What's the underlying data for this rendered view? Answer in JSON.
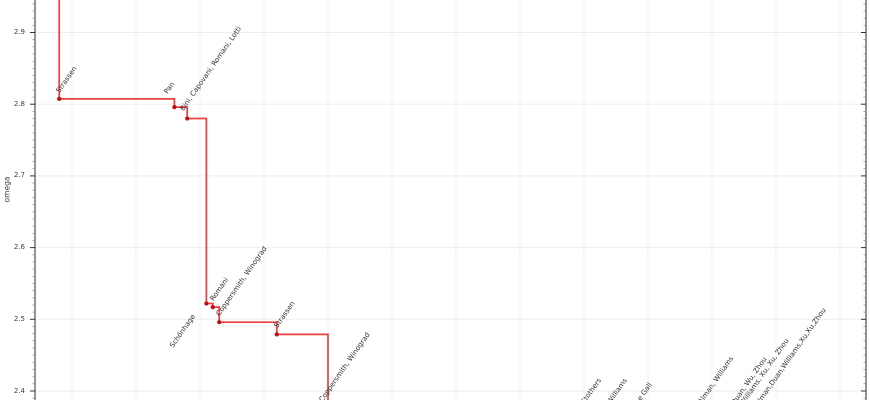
{
  "chart_data": {
    "type": "line",
    "step_style": "post",
    "title": "",
    "xlabel": "",
    "ylabel": "omega",
    "legend": "none",
    "grid": "on",
    "line_color": "#e8403e",
    "marker_color": "#c00d0d",
    "grid_color": "#ededed",
    "vgrid_color": "#f1f1f1",
    "axis_color": "#2b2b2b",
    "start_value": {
      "year": 1969,
      "omega_from": 3.0
    },
    "y_axis": {
      "tick_labels": [
        "2.9",
        "2.8",
        "2.7",
        "2.6",
        "2.5",
        "2.4"
      ],
      "tick_values": [
        2.9,
        2.8,
        2.7,
        2.6,
        2.5,
        2.4
      ],
      "minor_step": 0.01,
      "visible_range": [
        2.387,
        2.945
      ]
    },
    "x_axis": {
      "gridline_years": [
        1970,
        1975,
        1980,
        1985,
        1990,
        1995,
        2000,
        2005,
        2010,
        2015,
        2020,
        2025,
        2030
      ],
      "visible_range": [
        1967.1,
        2032.2
      ],
      "tick_labels_visible": false
    },
    "points": [
      {
        "year": 1969,
        "omega": 2.8074,
        "label": "Strassen"
      },
      {
        "year": 1978,
        "omega": 2.796,
        "label": "Pan"
      },
      {
        "year": 1979,
        "omega": 2.78,
        "label": "Bini, Capovani, Romani, Lotti"
      },
      {
        "year": 1980.5,
        "omega": 2.522,
        "label": "Schönhage"
      },
      {
        "year": 1981,
        "omega": 2.517,
        "label": "Romani"
      },
      {
        "year": 1981.5,
        "omega": 2.496,
        "label": "Coppersmith, Winograd"
      },
      {
        "year": 1986,
        "omega": 2.479,
        "label": "Strassen"
      },
      {
        "year": 1990,
        "omega": 2.376,
        "label": "Coppersmith, Winograd"
      },
      {
        "year": 2010,
        "omega": 2.374,
        "label": "Stothers"
      },
      {
        "year": 2012,
        "omega": 2.3729,
        "label": "Williams"
      },
      {
        "year": 2014,
        "omega": 2.3729,
        "label": "Le Gall"
      },
      {
        "year": 2020,
        "omega": 2.3729,
        "label": "Alman, Williams"
      },
      {
        "year": 2022,
        "omega": 2.3719,
        "label": "Duan, Wu, Zhou"
      },
      {
        "year": 2023,
        "omega": 2.3716,
        "label": "Williams, Xu, Xu, Zhou"
      },
      {
        "year": 2024,
        "omega": 2.3713,
        "label": "Alman,Duan,Williams,Xu,Xu,Zhou"
      }
    ]
  }
}
